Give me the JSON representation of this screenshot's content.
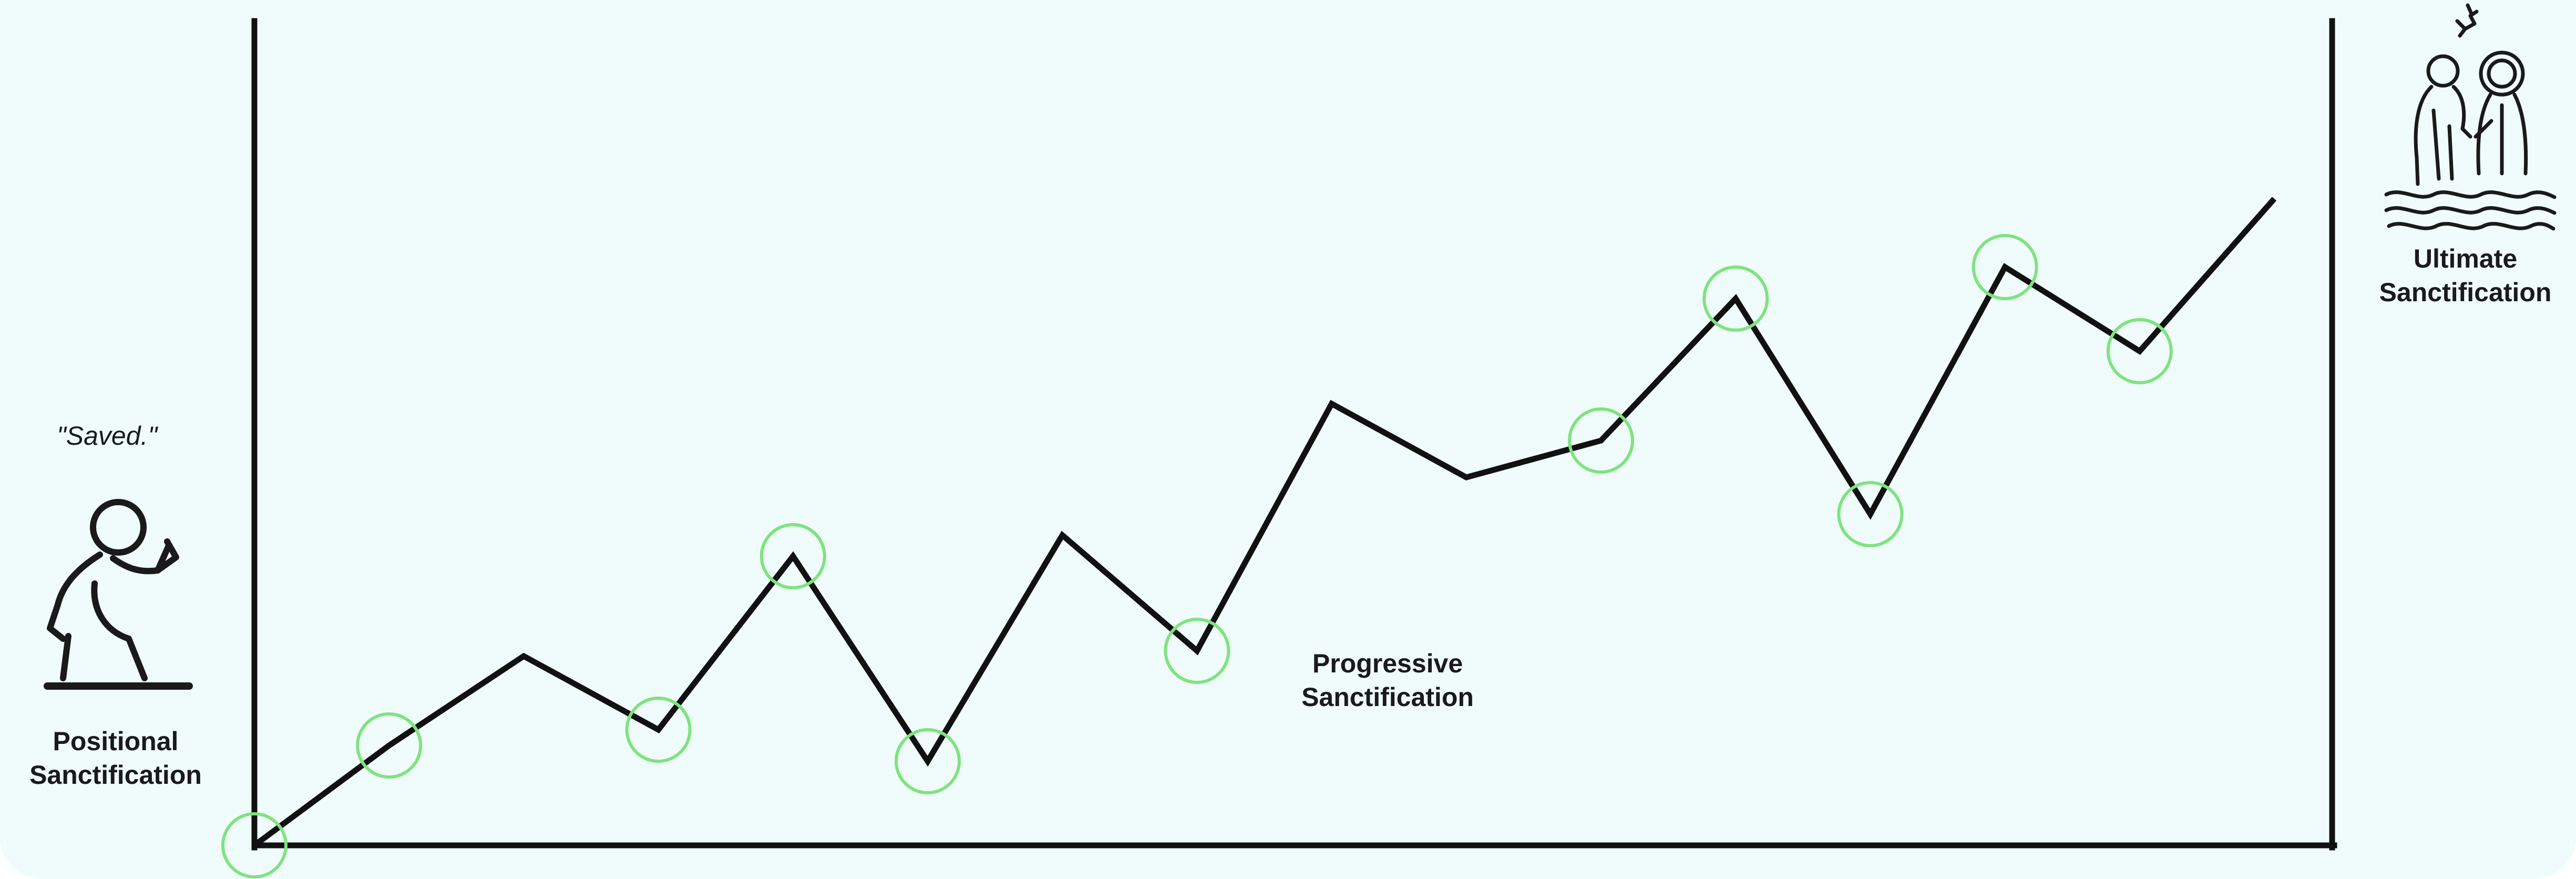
{
  "colors": {
    "background": "#effcfb",
    "line": "#111111",
    "marker": "#7fe37f"
  },
  "icons": {
    "start": "kneeling-prayer-icon",
    "end": "baptism-icon"
  },
  "labels": {
    "saved_quote": "\"Saved.\"",
    "positional_line1": "Positional",
    "positional_line2": "Sanctification",
    "progressive_line1": "Progressive",
    "progressive_line2": "Sanctification",
    "ultimate_line1": "Ultimate",
    "ultimate_line2": "Sanctification"
  },
  "progress_path": [
    {
      "step": 0,
      "level": 0,
      "marked": true
    },
    {
      "step": 1,
      "level": 0.19,
      "marked": true
    },
    {
      "step": 2,
      "level": 0.36,
      "marked": false
    },
    {
      "step": 3,
      "level": 0.22,
      "marked": true
    },
    {
      "step": 4,
      "level": 0.55,
      "marked": true
    },
    {
      "step": 5,
      "level": 0.16,
      "marked": true
    },
    {
      "step": 6,
      "level": 0.59,
      "marked": false
    },
    {
      "step": 7,
      "level": 0.37,
      "marked": true
    },
    {
      "step": 8,
      "level": 0.84,
      "marked": false
    },
    {
      "step": 9,
      "level": 0.7,
      "marked": false
    },
    {
      "step": 10,
      "level": 0.77,
      "marked": true
    },
    {
      "step": 11,
      "level": 1.04,
      "marked": true
    },
    {
      "step": 12,
      "level": 0.63,
      "marked": true
    },
    {
      "step": 13,
      "level": 1.1,
      "marked": true
    },
    {
      "step": 14,
      "level": 0.94,
      "marked": true
    },
    {
      "step": 15,
      "level": 1.23,
      "marked": false
    }
  ]
}
